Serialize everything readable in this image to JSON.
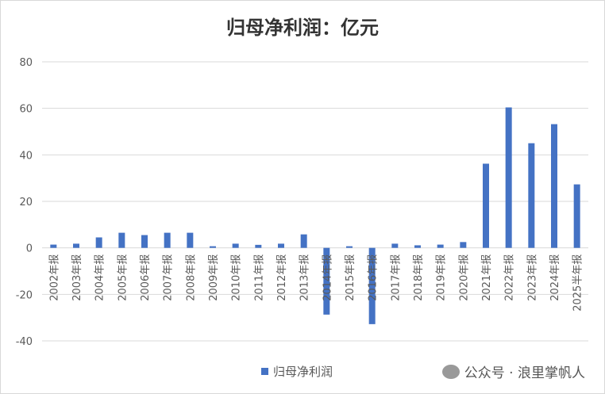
{
  "chart_data": {
    "type": "bar",
    "title": "归母净利润：亿元",
    "categories": [
      "2002年报",
      "2003年报",
      "2004年报",
      "2005年报",
      "2006年报",
      "2007年报",
      "2008年报",
      "2009年报",
      "2010年报",
      "2011年报",
      "2012年报",
      "2013年报",
      "2014年报",
      "2015年报",
      "2016年报",
      "2017年报",
      "2018年报",
      "2019年报",
      "2020年报",
      "2021年报",
      "2022年报",
      "2023年报",
      "2024年报",
      "2025半年报"
    ],
    "series": [
      {
        "name": "归母净利润",
        "values": [
          1.4,
          1.8,
          4.5,
          6.5,
          5.5,
          6.5,
          6.5,
          0.7,
          1.8,
          1.3,
          1.8,
          5.8,
          -28.7,
          0.7,
          -32.8,
          1.8,
          1.1,
          1.4,
          2.5,
          36.2,
          60.4,
          45,
          53.2,
          27.3
        ]
      }
    ],
    "ylim": [
      -40,
      80
    ],
    "yticks": [
      -40,
      -20,
      0,
      20,
      40,
      60,
      80
    ],
    "grid": true,
    "legend": "bottom",
    "color": "#4472c4"
  },
  "watermark": "公众号 · 浪里掌帆人"
}
